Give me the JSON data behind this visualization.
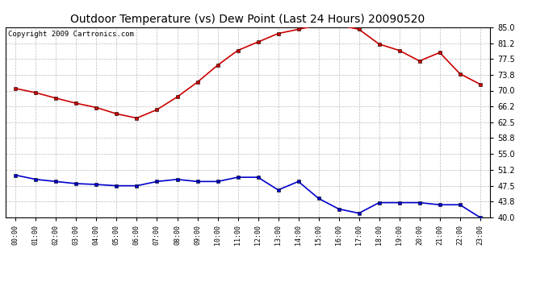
{
  "title": "Outdoor Temperature (vs) Dew Point (Last 24 Hours) 20090520",
  "copyright": "Copyright 2009 Cartronics.com",
  "hours": [
    "00:00",
    "01:00",
    "02:00",
    "03:00",
    "04:00",
    "05:00",
    "06:00",
    "07:00",
    "08:00",
    "09:00",
    "10:00",
    "11:00",
    "12:00",
    "13:00",
    "14:00",
    "15:00",
    "16:00",
    "17:00",
    "18:00",
    "19:00",
    "20:00",
    "21:00",
    "22:00",
    "23:00"
  ],
  "temp": [
    70.5,
    69.5,
    68.2,
    67.0,
    66.0,
    64.5,
    63.5,
    65.5,
    68.5,
    72.0,
    76.0,
    79.5,
    81.5,
    83.5,
    84.5,
    85.5,
    85.5,
    84.5,
    81.0,
    79.5,
    77.0,
    79.0,
    74.0,
    71.5
  ],
  "dew": [
    50.0,
    49.0,
    48.5,
    48.0,
    47.8,
    47.5,
    47.5,
    48.5,
    49.0,
    48.5,
    48.5,
    49.5,
    49.5,
    46.5,
    48.5,
    44.5,
    42.0,
    41.0,
    43.5,
    43.5,
    43.5,
    43.0,
    43.0,
    40.0
  ],
  "ylim": [
    40.0,
    85.0
  ],
  "yticks": [
    40.0,
    43.8,
    47.5,
    51.2,
    55.0,
    58.8,
    62.5,
    66.2,
    70.0,
    73.8,
    77.5,
    81.2,
    85.0
  ],
  "temp_color": "#cc0000",
  "dew_color": "#0000cc",
  "bg_color": "#ffffff",
  "grid_color": "#bbbbbb",
  "title_fontsize": 10,
  "copyright_fontsize": 6.5,
  "marker": "s",
  "marker_size": 2.5,
  "line_width": 1.2
}
